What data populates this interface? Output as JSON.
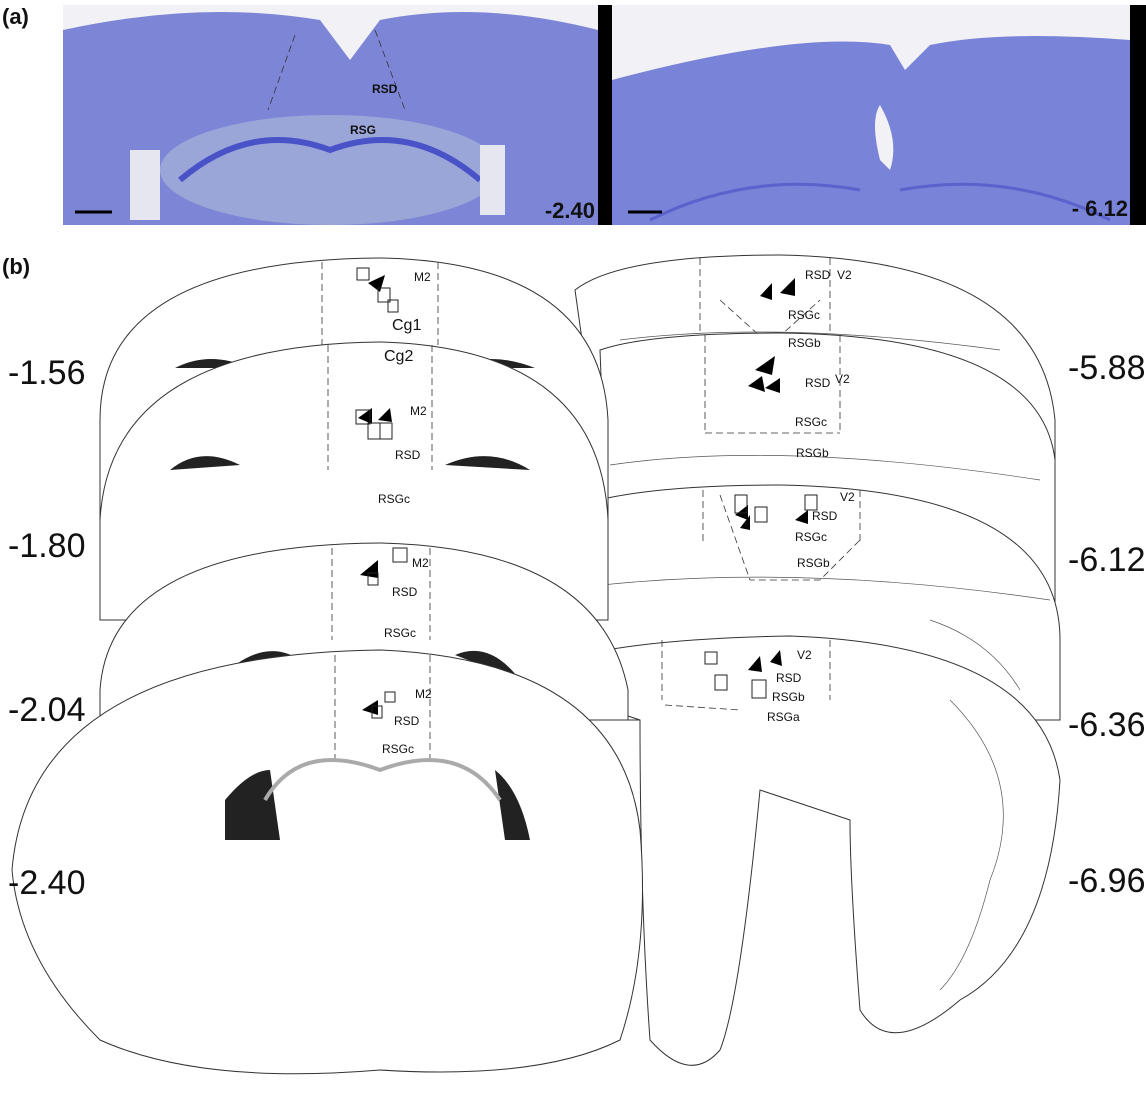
{
  "panel_a": {
    "label": "(a)",
    "images": [
      {
        "regions": [
          "RSD",
          "RSG"
        ],
        "level": "-2.40"
      },
      {
        "level": "- 6.12"
      }
    ]
  },
  "panel_b": {
    "label": "(b)",
    "left_levels": [
      "-1.56",
      "-1.80",
      "-2.04",
      "-2.40"
    ],
    "right_levels": [
      "-5.88",
      "-6.12",
      "-6.36",
      "-6.96"
    ],
    "left_sections": [
      {
        "regions": [
          "M2",
          "Cg1",
          "Cg2"
        ]
      },
      {
        "regions": [
          "M2",
          "RSD",
          "RSGc"
        ]
      },
      {
        "regions": [
          "M2",
          "RSD",
          "RSGc"
        ]
      },
      {
        "regions": [
          "M2",
          "RSD",
          "RSGc"
        ]
      }
    ],
    "right_sections": [
      {
        "regions": [
          "RSD",
          "V2",
          "RSGc",
          "RSGb"
        ]
      },
      {
        "regions": [
          "RSD",
          "V2",
          "RSGc",
          "RSGb"
        ]
      },
      {
        "regions": [
          "V2",
          "RSD",
          "RSGc",
          "RSGb"
        ]
      },
      {
        "regions": [
          "V2",
          "RSD",
          "RSGb",
          "RSGa"
        ]
      }
    ]
  }
}
